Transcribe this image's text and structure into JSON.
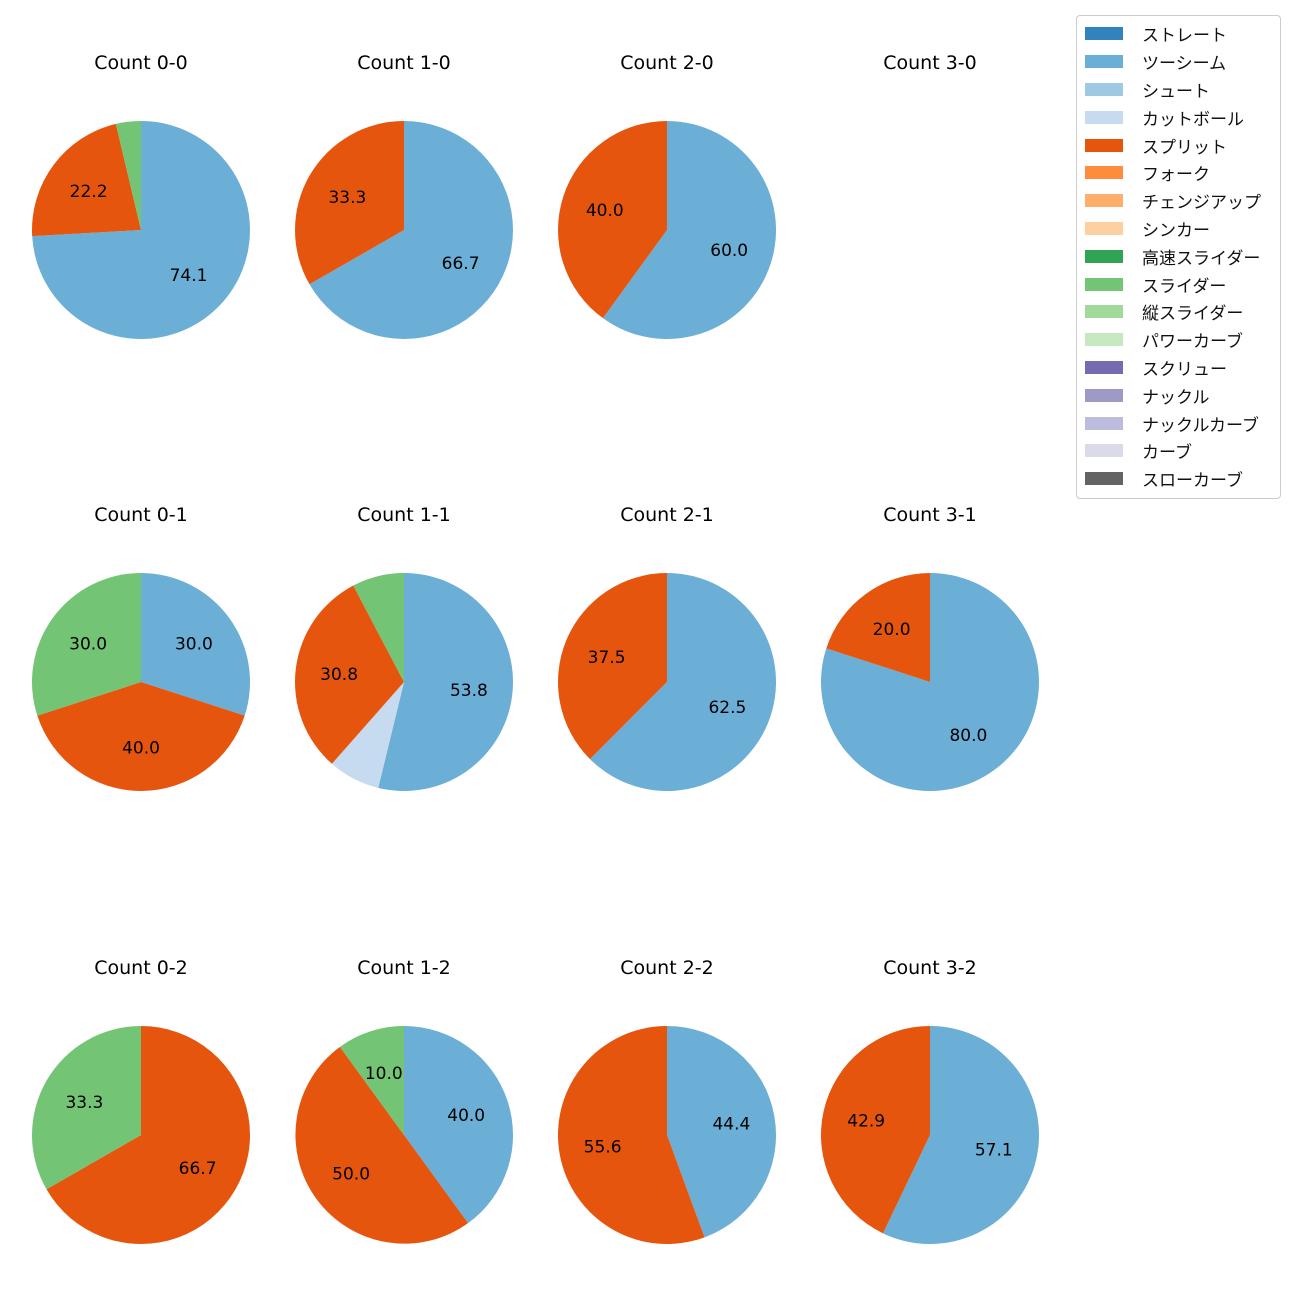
{
  "legend": [
    {
      "label": "ストレート",
      "color": "#3182bd"
    },
    {
      "label": "ツーシーム",
      "color": "#6baed6"
    },
    {
      "label": "シュート",
      "color": "#9ecae1"
    },
    {
      "label": "カットボール",
      "color": "#c6dbef"
    },
    {
      "label": "スプリット",
      "color": "#e6550d"
    },
    {
      "label": "フォーク",
      "color": "#fd8d3c"
    },
    {
      "label": "チェンジアップ",
      "color": "#fdae6b"
    },
    {
      "label": "シンカー",
      "color": "#fdd0a2"
    },
    {
      "label": "高速スライダー",
      "color": "#31a354"
    },
    {
      "label": "スライダー",
      "color": "#74c476"
    },
    {
      "label": "縦スライダー",
      "color": "#a1d99b"
    },
    {
      "label": "パワーカーブ",
      "color": "#c7e9c0"
    },
    {
      "label": "スクリュー",
      "color": "#756bb1"
    },
    {
      "label": "ナックル",
      "color": "#9e9ac8"
    },
    {
      "label": "ナックルカーブ",
      "color": "#bcbddc"
    },
    {
      "label": "カーブ",
      "color": "#dadaeb"
    },
    {
      "label": "スローカーブ",
      "color": "#636363"
    }
  ],
  "chart_data": [
    {
      "type": "pie",
      "title": "Count 0-0",
      "slices": [
        {
          "pitch": "ツーシーム",
          "value": 74.1,
          "label": "74.1"
        },
        {
          "pitch": "スプリット",
          "value": 22.2,
          "label": "22.2"
        },
        {
          "pitch": "スライダー",
          "value": 3.7,
          "label": ""
        }
      ]
    },
    {
      "type": "pie",
      "title": "Count 1-0",
      "slices": [
        {
          "pitch": "ツーシーム",
          "value": 66.7,
          "label": "66.7"
        },
        {
          "pitch": "スプリット",
          "value": 33.3,
          "label": "33.3"
        }
      ]
    },
    {
      "type": "pie",
      "title": "Count 2-0",
      "slices": [
        {
          "pitch": "ツーシーム",
          "value": 60.0,
          "label": "60.0"
        },
        {
          "pitch": "スプリット",
          "value": 40.0,
          "label": "40.0"
        }
      ]
    },
    {
      "type": "pie",
      "title": "Count 3-0",
      "slices": []
    },
    {
      "type": "pie",
      "title": "Count 0-1",
      "slices": [
        {
          "pitch": "ツーシーム",
          "value": 30.0,
          "label": "30.0"
        },
        {
          "pitch": "スプリット",
          "value": 40.0,
          "label": "40.0"
        },
        {
          "pitch": "スライダー",
          "value": 30.0,
          "label": "30.0"
        }
      ]
    },
    {
      "type": "pie",
      "title": "Count 1-1",
      "slices": [
        {
          "pitch": "ツーシーム",
          "value": 53.8,
          "label": "53.8"
        },
        {
          "pitch": "カットボール",
          "value": 7.7,
          "label": ""
        },
        {
          "pitch": "スプリット",
          "value": 30.8,
          "label": "30.8"
        },
        {
          "pitch": "スライダー",
          "value": 7.7,
          "label": ""
        }
      ]
    },
    {
      "type": "pie",
      "title": "Count 2-1",
      "slices": [
        {
          "pitch": "ツーシーム",
          "value": 62.5,
          "label": "62.5"
        },
        {
          "pitch": "スプリット",
          "value": 37.5,
          "label": "37.5"
        }
      ]
    },
    {
      "type": "pie",
      "title": "Count 3-1",
      "slices": [
        {
          "pitch": "ツーシーム",
          "value": 80.0,
          "label": "80.0"
        },
        {
          "pitch": "スプリット",
          "value": 20.0,
          "label": "20.0"
        }
      ]
    },
    {
      "type": "pie",
      "title": "Count 0-2",
      "slices": [
        {
          "pitch": "スプリット",
          "value": 66.7,
          "label": "66.7"
        },
        {
          "pitch": "スライダー",
          "value": 33.3,
          "label": "33.3"
        }
      ]
    },
    {
      "type": "pie",
      "title": "Count 1-2",
      "slices": [
        {
          "pitch": "ツーシーム",
          "value": 40.0,
          "label": "40.0"
        },
        {
          "pitch": "スプリット",
          "value": 50.0,
          "label": "50.0"
        },
        {
          "pitch": "スライダー",
          "value": 10.0,
          "label": "10.0"
        }
      ]
    },
    {
      "type": "pie",
      "title": "Count 2-2",
      "slices": [
        {
          "pitch": "ツーシーム",
          "value": 44.4,
          "label": "44.4"
        },
        {
          "pitch": "スプリット",
          "value": 55.6,
          "label": "55.6"
        }
      ]
    },
    {
      "type": "pie",
      "title": "Count 3-2",
      "slices": [
        {
          "pitch": "ツーシーム",
          "value": 57.1,
          "label": "57.1"
        },
        {
          "pitch": "スプリット",
          "value": 42.9,
          "label": "42.9"
        }
      ]
    }
  ]
}
